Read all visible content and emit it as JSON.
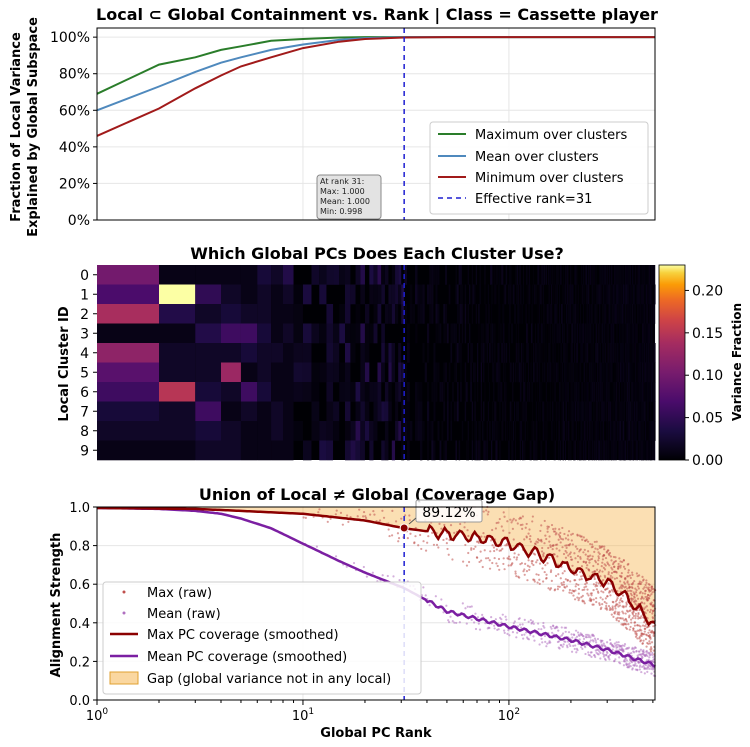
{
  "chart_data": [
    {
      "type": "line",
      "title": "Local ⊂ Global Containment vs. Rank | Class = Cassette player",
      "ylabel_line1": "Fraction of Local Variance",
      "ylabel_line2": "Explained by Global Subspace",
      "xscale": "log",
      "xlim": [
        1,
        512
      ],
      "ylim": [
        0,
        1.05
      ],
      "y_ticks": [
        "0%",
        "20%",
        "40%",
        "60%",
        "80%",
        "100%"
      ],
      "grid": true,
      "legend_position": "lower-right",
      "series": [
        {
          "name": "Maximum over clusters",
          "color": "#2a7d2a",
          "x": [
            1,
            2,
            3,
            4,
            5,
            7,
            10,
            15,
            20,
            31,
            50,
            100,
            512
          ],
          "y": [
            0.69,
            0.85,
            0.89,
            0.93,
            0.95,
            0.98,
            0.99,
            0.998,
            1.0,
            1.0,
            1.0,
            1.0,
            1.0
          ]
        },
        {
          "name": "Mean over clusters",
          "color": "#4f89bd",
          "x": [
            1,
            2,
            3,
            4,
            5,
            7,
            10,
            15,
            20,
            31,
            50,
            100,
            512
          ],
          "y": [
            0.6,
            0.73,
            0.81,
            0.86,
            0.89,
            0.93,
            0.96,
            0.985,
            0.995,
            1.0,
            1.0,
            1.0,
            1.0
          ]
        },
        {
          "name": "Minimum over clusters",
          "color": "#a11a1a",
          "x": [
            1,
            2,
            3,
            4,
            5,
            7,
            10,
            15,
            20,
            31,
            50,
            100,
            512
          ],
          "y": [
            0.46,
            0.61,
            0.72,
            0.79,
            0.84,
            0.89,
            0.94,
            0.975,
            0.99,
            0.998,
            1.0,
            1.0,
            1.0
          ]
        }
      ],
      "vline": {
        "x": 31,
        "name": "Effective rank=31",
        "color": "#1f1fd1"
      },
      "annotation": [
        "At rank 31:",
        "Max: 1.000",
        "Mean: 1.000",
        "Min: 0.998"
      ]
    },
    {
      "type": "heatmap",
      "title": "Which Global PCs Does Each Cluster Use?",
      "ylabel": "Local Cluster ID",
      "rows": [
        "0",
        "1",
        "2",
        "3",
        "4",
        "5",
        "6",
        "7",
        "8",
        "9"
      ],
      "colorbar_label": "Variance Fraction",
      "colorbar_ticks": [
        "0.00",
        "0.05",
        "0.10",
        "0.15",
        "0.20"
      ],
      "vmax": 0.23,
      "colormap": "inferno",
      "first_columns": [
        [
          0.1,
          0.01,
          0.01,
          0.01,
          0.01,
          0.03,
          0.02,
          0.04
        ],
        [
          0.07,
          0.23,
          0.05,
          0.02,
          0.01,
          0.02,
          0.01,
          0.02
        ],
        [
          0.14,
          0.04,
          0.02,
          0.03,
          0.02,
          0.02,
          0.01,
          0.01
        ],
        [
          0.01,
          0.01,
          0.04,
          0.06,
          0.06,
          0.03,
          0.01,
          0.02
        ],
        [
          0.12,
          0.02,
          0.02,
          0.02,
          0.03,
          0.02,
          0.02,
          0.01
        ],
        [
          0.08,
          0.02,
          0.02,
          0.13,
          0.01,
          0.02,
          0.01,
          0.01
        ],
        [
          0.06,
          0.15,
          0.03,
          0.02,
          0.06,
          0.03,
          0.01,
          0.01
        ],
        [
          0.03,
          0.02,
          0.06,
          0.01,
          0.02,
          0.01,
          0.02,
          0.01
        ],
        [
          0.02,
          0.02,
          0.03,
          0.02,
          0.01,
          0.01,
          0.02,
          0.01
        ],
        [
          0.01,
          0.01,
          0.02,
          0.02,
          0.01,
          0.01,
          0.01,
          0.01
        ]
      ],
      "vline": {
        "x": 31
      }
    },
    {
      "type": "line",
      "title": "Union of Local ≠ Global (Coverage Gap)",
      "xlabel": "Global PC Rank",
      "ylabel": "Alignment Strength",
      "xscale": "log",
      "xlim": [
        1,
        512
      ],
      "ylim": [
        0.0,
        1.0
      ],
      "x_ticks": [
        1,
        10,
        100
      ],
      "y_ticks": [
        "0.0",
        "0.2",
        "0.4",
        "0.6",
        "0.8",
        "1.0"
      ],
      "grid": true,
      "legend_position": "lower-left",
      "series": [
        {
          "name": "Max (raw)",
          "style": "scatter",
          "color": "#c0504d"
        },
        {
          "name": "Mean (raw)",
          "style": "scatter",
          "color": "#b070c0"
        },
        {
          "name": "Max PC coverage (smoothed)",
          "color": "#8b0000",
          "x": [
            1,
            3,
            5,
            10,
            20,
            31,
            50,
            80,
            100,
            150,
            200,
            300,
            400,
            512
          ],
          "y": [
            0.995,
            0.99,
            0.98,
            0.965,
            0.93,
            0.89,
            0.86,
            0.83,
            0.81,
            0.74,
            0.68,
            0.61,
            0.5,
            0.38
          ]
        },
        {
          "name": "Mean PC coverage (smoothed)",
          "color": "#7b1fa2",
          "x": [
            1,
            2,
            3,
            4,
            5,
            7,
            10,
            15,
            20,
            31,
            50,
            100,
            200,
            300,
            512
          ],
          "y": [
            0.995,
            0.99,
            0.98,
            0.965,
            0.94,
            0.89,
            0.81,
            0.72,
            0.66,
            0.58,
            0.46,
            0.38,
            0.31,
            0.26,
            0.18
          ]
        }
      ],
      "gap_label": "Gap (global variance not in any local)",
      "gap_color": "#f5b041",
      "vline": {
        "x": 31,
        "color": "#1f1fd1"
      },
      "marker": {
        "x": 31,
        "y": 0.8912,
        "label": "89.12%"
      }
    }
  ]
}
